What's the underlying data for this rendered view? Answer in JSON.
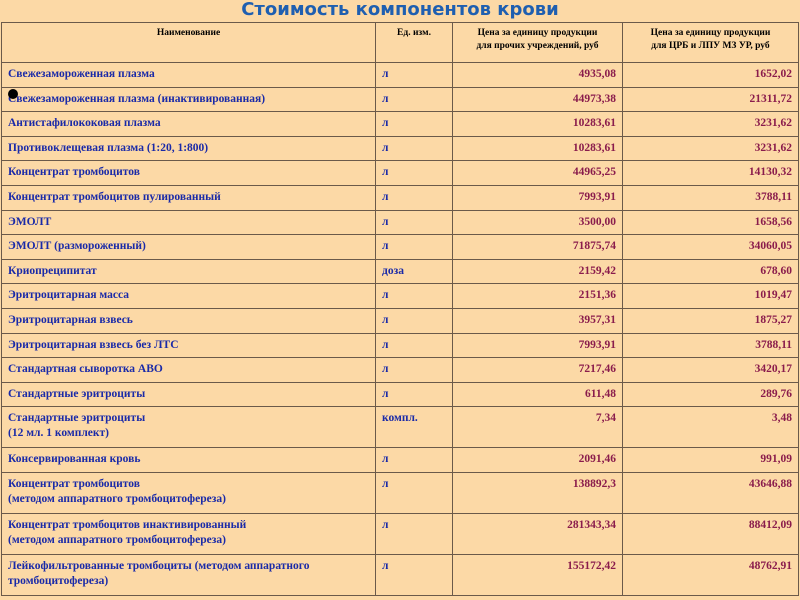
{
  "title": "Стоимость компонентов крови",
  "table": {
    "header": [
      [
        "Наименование"
      ],
      [
        "Ед. изм."
      ],
      [
        "Цена за единицу продукции",
        "для прочих учреждений, руб"
      ],
      [
        "Цена за единицу продукции",
        "для ЦРБ и ЛПУ МЗ УР, руб"
      ]
    ],
    "rows": [
      {
        "name": [
          "Свежезамороженная  плазма"
        ],
        "unit": "л",
        "price_other": "4935,08",
        "price_crb": "1652,02"
      },
      {
        "name": [
          "Свежезамороженная плазма (инактивированная)"
        ],
        "unit": "л",
        "price_other": "44973,38",
        "price_crb": "21311,72"
      },
      {
        "name": [
          "Антистафилококовая  плазма"
        ],
        "unit": "л",
        "price_other": "10283,61",
        "price_crb": "3231,62"
      },
      {
        "name": [
          "Противоклещевая  плазма (1:20, 1:800)"
        ],
        "unit": "л",
        "price_other": "10283,61",
        "price_crb": "3231,62"
      },
      {
        "name": [
          "Концентрат тромбоцитов"
        ],
        "unit": "л",
        "price_other": "44965,25",
        "price_crb": "14130,32"
      },
      {
        "name": [
          "Концентрат тромбоцитов пулированный"
        ],
        "unit": "л",
        "price_other": "7993,91",
        "price_crb": "3788,11"
      },
      {
        "name": [
          "ЭМОЛТ"
        ],
        "unit": "л",
        "price_other": "3500,00",
        "price_crb": "1658,56"
      },
      {
        "name": [
          "ЭМОЛТ (размороженный)"
        ],
        "unit": "л",
        "price_other": "71875,74",
        "price_crb": "34060,05"
      },
      {
        "name": [
          "Криопреципитат"
        ],
        "unit": "доза",
        "price_other": "2159,42",
        "price_crb": "678,60"
      },
      {
        "name": [
          "Эритроцитарная масса"
        ],
        "unit": "л",
        "price_other": "2151,36",
        "price_crb": "1019,47"
      },
      {
        "name": [
          "Эритроцитарная взвесь"
        ],
        "unit": "л",
        "price_other": "3957,31",
        "price_crb": "1875,27"
      },
      {
        "name": [
          "Эритроцитарная взвесь без ЛТС"
        ],
        "unit": "л",
        "price_other": "7993,91",
        "price_crb": "3788,11"
      },
      {
        "name": [
          "Стандартная   сыворотка  АВО"
        ],
        "unit": "л",
        "price_other": "7217,46",
        "price_crb": "3420,17"
      },
      {
        "name": [
          "Стандартные   эритроциты"
        ],
        "unit": "л",
        "price_other": "611,48",
        "price_crb": "289,76"
      },
      {
        "name": [
          "Стандартные  эритроциты",
          "(12 мл. 1 комплект)"
        ],
        "unit": "компл.",
        "price_other": "7,34",
        "price_crb": "3,48"
      },
      {
        "name": [
          "Консервированная кровь"
        ],
        "unit": "л",
        "price_other": "2091,46",
        "price_crb": "991,09"
      },
      {
        "name": [
          "Концентрат тромбоцитов",
          "(методом аппаратного тромбоцитофереза)"
        ],
        "unit": "л",
        "price_other": "138892,3",
        "price_crb": "43646,88"
      },
      {
        "name": [
          "Концентрат тромбоцитов инактивированный",
          "(методом аппаратного тромбоцитофереза)"
        ],
        "unit": "л",
        "price_other": "281343,34",
        "price_crb": "88412,09"
      },
      {
        "name": [
          "Лейкофильтрованные тромбоциты (методом аппаратного",
          "тромбоцитофереза)"
        ],
        "unit": "л",
        "price_other": "155172,42",
        "price_crb": "48762,91"
      }
    ]
  }
}
